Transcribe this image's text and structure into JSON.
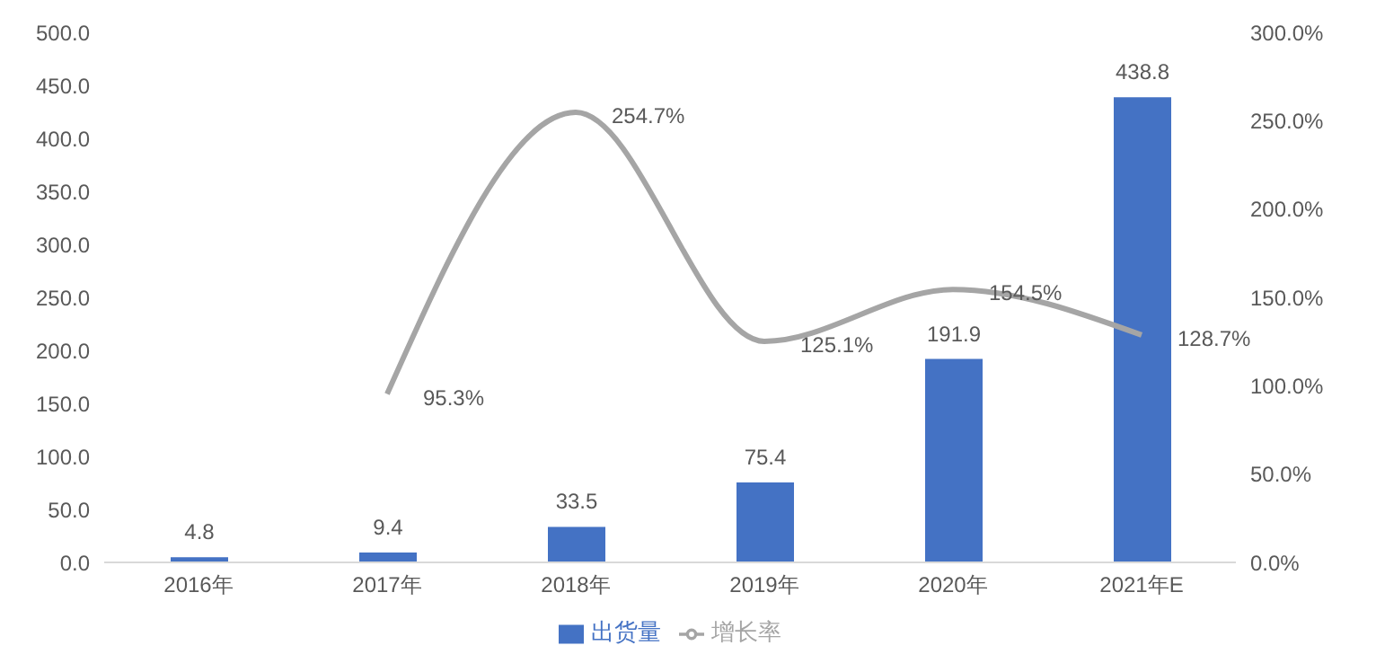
{
  "chart_data": {
    "type": "bar",
    "categories": [
      "2016年",
      "2017年",
      "2018年",
      "2019年",
      "2020年",
      "2021年E"
    ],
    "series": [
      {
        "name": "出货量",
        "color": "#4472c4",
        "values": [
          4.8,
          9.4,
          33.5,
          75.4,
          191.9,
          438.8
        ],
        "value_labels": [
          "4.8",
          "9.4",
          "33.5",
          "75.4",
          "191.9",
          "438.8"
        ]
      },
      {
        "name": "增长率",
        "type": "line",
        "axis": "y2",
        "color": "#a5a5a5",
        "values": [
          null,
          95.3,
          254.7,
          125.1,
          154.5,
          128.7
        ],
        "value_labels": [
          null,
          "95.3%",
          "254.7%",
          "125.1%",
          "154.5%",
          "128.7%"
        ]
      }
    ],
    "ylim": [
      0,
      500
    ],
    "yticks": [
      {
        "value": 0,
        "label": "0.0"
      },
      {
        "value": 50,
        "label": "50.0"
      },
      {
        "value": 100,
        "label": "100.0"
      },
      {
        "value": 150,
        "label": "150.0"
      },
      {
        "value": 200,
        "label": "200.0"
      },
      {
        "value": 250,
        "label": "250.0"
      },
      {
        "value": 300,
        "label": "300.0"
      },
      {
        "value": 350,
        "label": "350.0"
      },
      {
        "value": 400,
        "label": "400.0"
      },
      {
        "value": 450,
        "label": "450.0"
      },
      {
        "value": 500,
        "label": "500.0"
      }
    ],
    "y2lim": [
      0,
      300
    ],
    "y2ticks": [
      {
        "value": 0,
        "label": "0.0%"
      },
      {
        "value": 50,
        "label": "50.0%"
      },
      {
        "value": 100,
        "label": "100.0%"
      },
      {
        "value": 150,
        "label": "150.0%"
      },
      {
        "value": 200,
        "label": "200.0%"
      },
      {
        "value": 250,
        "label": "250.0%"
      },
      {
        "value": 300,
        "label": "300.0%"
      }
    ],
    "legend": "bottom",
    "marker": "none",
    "line_style": "solid"
  }
}
